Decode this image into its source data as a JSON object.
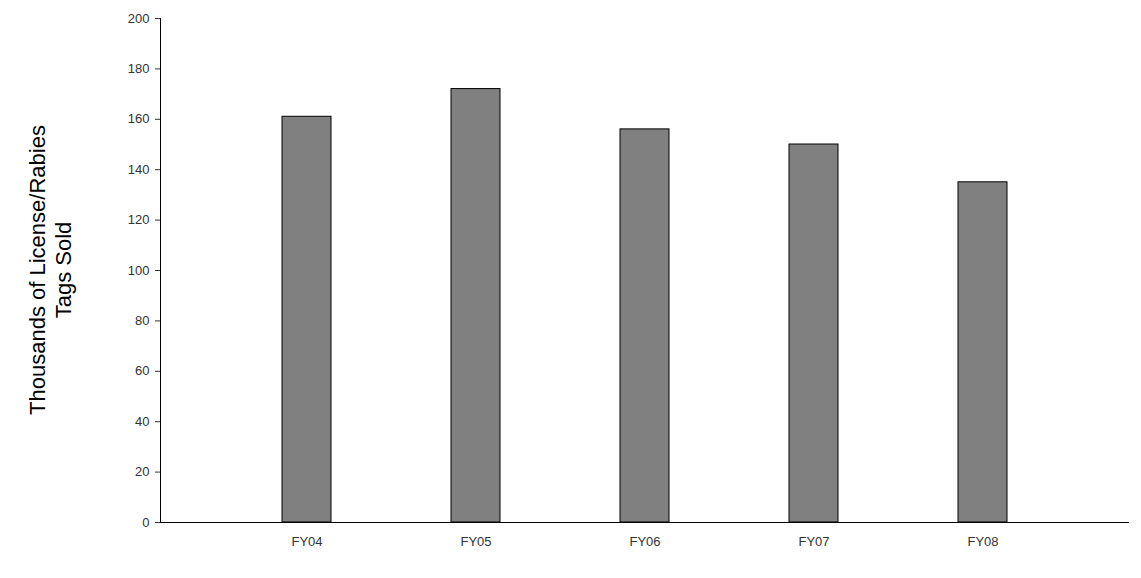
{
  "chart_data": {
    "type": "bar",
    "y_label": "Thousands of License/Rabies Tags Sold",
    "categories": [
      "FY04",
      "FY05",
      "FY06",
      "FY07",
      "FY08"
    ],
    "values": [
      161,
      172,
      156,
      150,
      135
    ],
    "color": "#808080",
    "ylim": [
      0,
      200
    ],
    "yticks": [
      0,
      20,
      40,
      60,
      80,
      100,
      120,
      140,
      160,
      180,
      200
    ],
    "grid": false
  }
}
